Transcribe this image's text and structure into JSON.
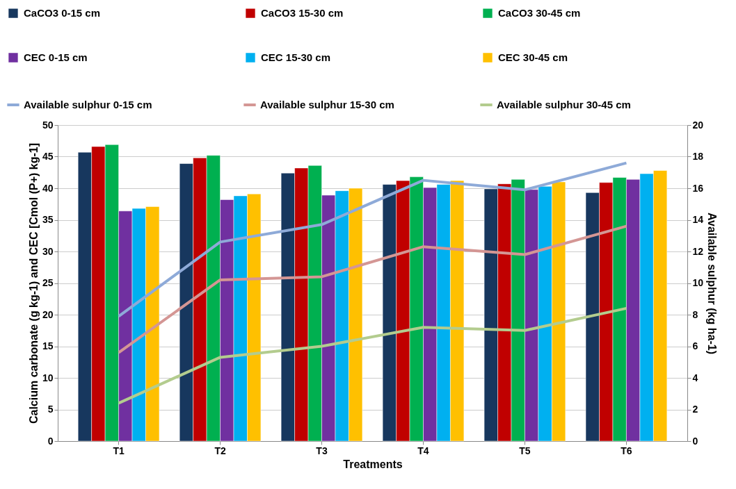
{
  "chart_data": {
    "type": "bar",
    "xlabel": "Treatments",
    "ylabel": "Calcium carbonate (g kg-1) and CEC [Cmol (P+) kg-1]",
    "y2label": "Available sulphur (kg ha-1)",
    "categories": [
      "T1",
      "T2",
      "T3",
      "T4",
      "T5",
      "T6"
    ],
    "series": [
      {
        "name": "CaCO3 0-15 cm",
        "color": "#17375e",
        "values": [
          45.7,
          43.9,
          42.4,
          40.6,
          39.9,
          39.3
        ]
      },
      {
        "name": "CaCO3 15-30 cm",
        "color": "#c00000",
        "values": [
          46.6,
          44.8,
          43.2,
          41.2,
          40.7,
          40.9
        ]
      },
      {
        "name": "CaCO3 30-45 cm",
        "color": "#00b050",
        "values": [
          46.9,
          45.2,
          43.6,
          41.8,
          41.4,
          41.7
        ]
      },
      {
        "name": "CEC 0-15 cm",
        "color": "#7030a0",
        "values": [
          36.4,
          38.2,
          38.9,
          40.1,
          39.8,
          41.4
        ]
      },
      {
        "name": "CEC 15-30 cm",
        "color": "#00b0f0",
        "values": [
          36.8,
          38.8,
          39.6,
          40.6,
          40.3,
          42.3
        ]
      },
      {
        "name": "CEC 30-45 cm",
        "color": "#ffc000",
        "values": [
          37.1,
          39.1,
          40.0,
          41.2,
          41.0,
          42.8
        ]
      },
      {
        "name": "Available sulphur 0-15 cm",
        "color": "#8eaad8",
        "type": "line",
        "axis": "y2",
        "values": [
          7.9,
          12.6,
          13.7,
          16.5,
          15.9,
          17.6
        ]
      },
      {
        "name": "Available sulphur 15-30 cm",
        "color": "#d49694",
        "type": "line",
        "axis": "y2",
        "values": [
          5.6,
          10.2,
          10.4,
          12.3,
          11.8,
          13.6
        ]
      },
      {
        "name": "Available sulphur 30-45 cm",
        "color": "#b3cc8e",
        "type": "line",
        "axis": "y2",
        "values": [
          2.4,
          5.3,
          6.0,
          7.2,
          7.0,
          8.4
        ]
      }
    ],
    "ylim": [
      0,
      50
    ],
    "yticks": [
      0,
      5,
      10,
      15,
      20,
      25,
      30,
      35,
      40,
      45,
      50
    ],
    "y2lim": [
      0,
      20
    ],
    "y2ticks": [
      0,
      2,
      4,
      6,
      8,
      10,
      12,
      14,
      16,
      18,
      20
    ],
    "grid": "y",
    "legend": "top"
  }
}
